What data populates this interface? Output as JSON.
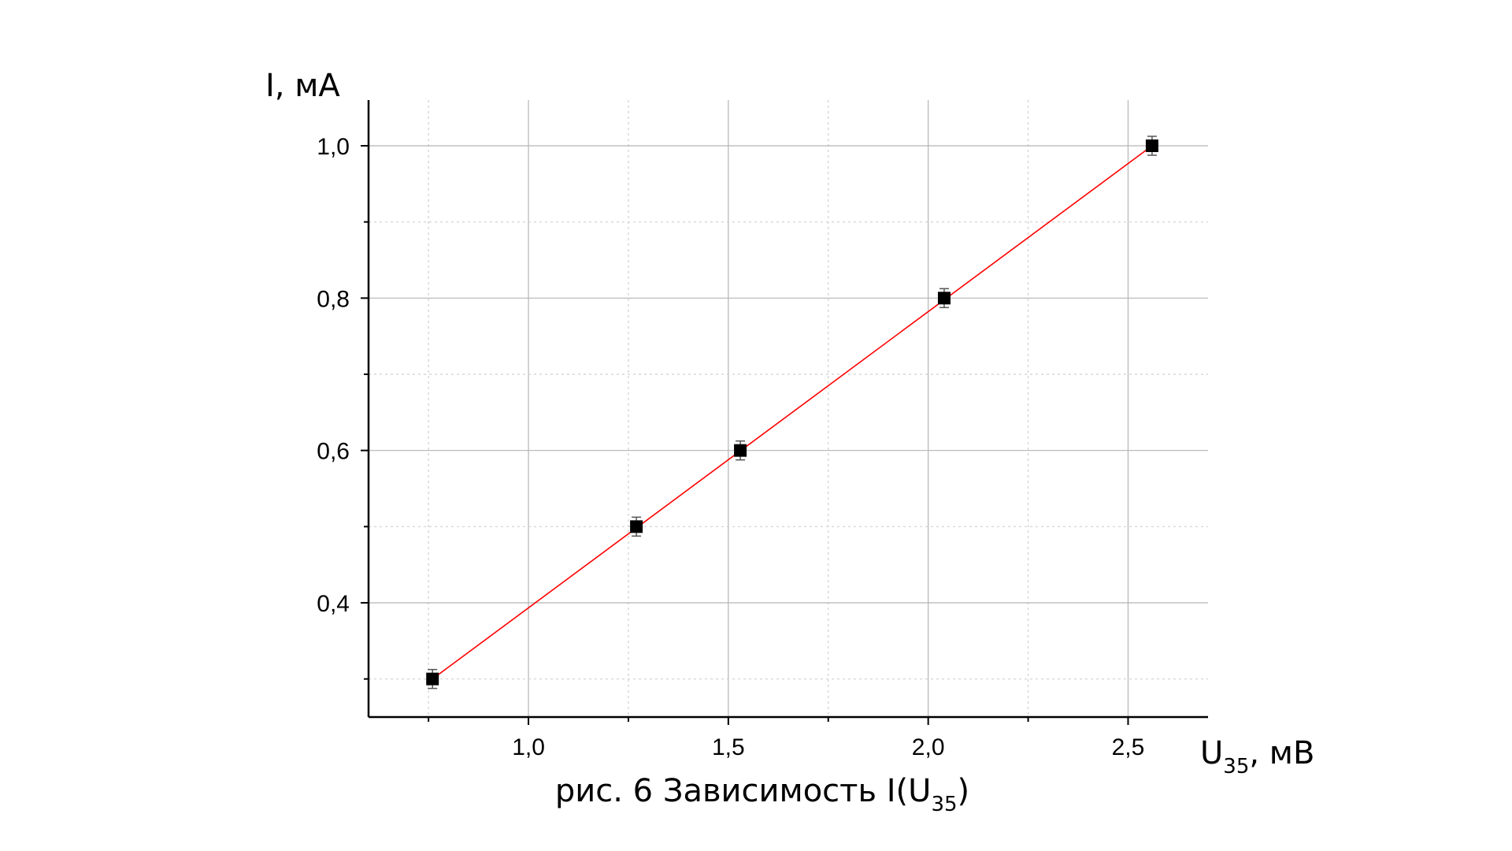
{
  "chart_data": {
    "type": "scatter",
    "title": "",
    "xlabel": {
      "main": "U",
      "sub": "35",
      "suffix": ", мВ"
    },
    "ylabel": "I, мА",
    "caption": {
      "prefix": "рис. 6 Зависимость I(U",
      "sub": "35",
      "suffix": ")"
    },
    "xlim": [
      0.6,
      2.7
    ],
    "ylim": [
      0.25,
      1.06
    ],
    "xticks": [
      {
        "value": 1.0,
        "label": "1,0"
      },
      {
        "value": 1.5,
        "label": "1,5"
      },
      {
        "value": 2.0,
        "label": "2,0"
      },
      {
        "value": 2.5,
        "label": "2,5"
      }
    ],
    "xminor": [
      0.75,
      1.25,
      1.75,
      2.25
    ],
    "yticks": [
      {
        "value": 0.4,
        "label": "0,4"
      },
      {
        "value": 0.6,
        "label": "0,6"
      },
      {
        "value": 0.8,
        "label": "0,8"
      },
      {
        "value": 1.0,
        "label": "1,0"
      }
    ],
    "yminor": [
      0.3,
      0.5,
      0.7,
      0.9
    ],
    "grid": true,
    "series": [
      {
        "kind": "points",
        "marker": "square",
        "color": "#000000",
        "x": [
          0.76,
          1.27,
          1.53,
          2.04,
          2.56
        ],
        "y": [
          0.3,
          0.5,
          0.6,
          0.8,
          1.0
        ]
      },
      {
        "kind": "fit-line",
        "color": "#ff0000",
        "x": [
          0.76,
          2.56
        ],
        "y": [
          0.3,
          1.0
        ]
      }
    ]
  }
}
